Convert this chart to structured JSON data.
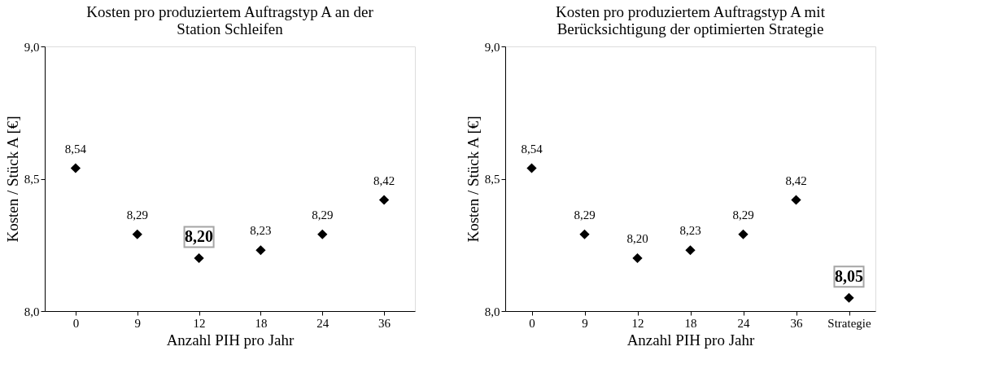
{
  "chart_data": [
    {
      "type": "scatter",
      "title": "Kosten pro produziertem Auftragstyp A an der Station Schleifen",
      "xlabel": "Anzahl PIH pro Jahr",
      "ylabel": "Kosten / Stück A [€]",
      "categories": [
        "0",
        "9",
        "12",
        "18",
        "24",
        "36"
      ],
      "series": [
        {
          "color": "#000000",
          "values": [
            8.54,
            8.29,
            8.2,
            8.23,
            8.29,
            8.42
          ],
          "value_labels": [
            "8,54",
            "8,29",
            null,
            "8,23",
            "8,29",
            "8,42"
          ]
        }
      ],
      "annotations": [
        {
          "text": "8,20",
          "x": "12",
          "y": 8.2
        }
      ],
      "ylim": [
        8,
        9
      ],
      "yticks": [
        {
          "value": 8,
          "label": "8,0"
        },
        {
          "value": 8.5,
          "label": "8,5"
        },
        {
          "value": 9,
          "label": "9,0"
        }
      ],
      "marker": "diamond",
      "grid": false
    },
    {
      "type": "scatter",
      "title": "Kosten pro produziertem Auftragstyp A mit Berücksichtigung der optimierten Strategie",
      "xlabel": "Anzahl PIH pro Jahr",
      "ylabel": "Kosten / Stück A [€]",
      "categories": [
        "0",
        "9",
        "12",
        "18",
        "24",
        "36",
        "Strategie"
      ],
      "series": [
        {
          "color": "#000000",
          "values": [
            8.54,
            8.29,
            8.2,
            8.23,
            8.29,
            8.42,
            8.05
          ],
          "value_labels": [
            "8,54",
            "8,29",
            "8,20",
            "8,23",
            "8,29",
            "8,42",
            null
          ]
        }
      ],
      "annotations": [
        {
          "text": "8,05",
          "x": "Strategie",
          "y": 8.05
        }
      ],
      "ylim": [
        8,
        9
      ],
      "yticks": [
        {
          "value": 8,
          "label": "8,0"
        },
        {
          "value": 8.5,
          "label": "8,5"
        },
        {
          "value": 9,
          "label": "9,0"
        }
      ],
      "marker": "diamond",
      "grid": false
    }
  ]
}
